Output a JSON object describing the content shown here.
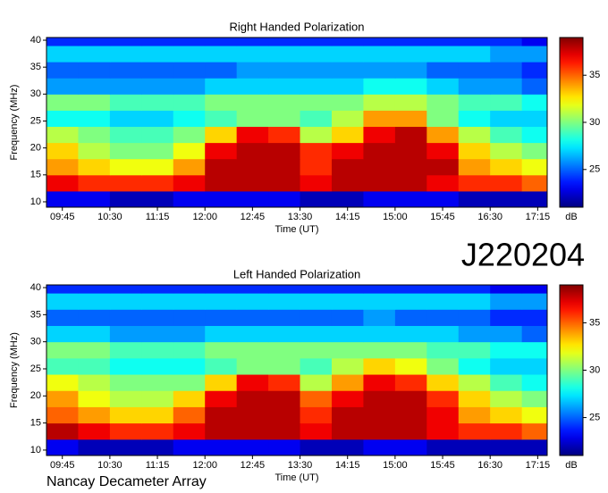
{
  "chart_data": [
    {
      "type": "heatmap",
      "title": "Right Handed Polarization",
      "x_label": "Time (UT)",
      "y_label": "Frequency (MHz)",
      "colorbar_label": "dB",
      "xlim": [
        9.5,
        17.4
      ],
      "ylim": [
        9,
        40.5
      ],
      "clim": [
        21,
        39
      ],
      "xticks": [
        {
          "value": 9.75,
          "label": "09:45"
        },
        {
          "value": 10.5,
          "label": "10:30"
        },
        {
          "value": 11.25,
          "label": "11:15"
        },
        {
          "value": 12,
          "label": "12:00"
        },
        {
          "value": 12.75,
          "label": "12:45"
        },
        {
          "value": 13.5,
          "label": "13:30"
        },
        {
          "value": 14.25,
          "label": "14:15"
        },
        {
          "value": 15,
          "label": "15:00"
        },
        {
          "value": 15.75,
          "label": "15:45"
        },
        {
          "value": 16.5,
          "label": "16:30"
        },
        {
          "value": 17.25,
          "label": "17:15"
        }
      ],
      "yticks": [
        10,
        15,
        20,
        25,
        30,
        35,
        40
      ],
      "cticks": [
        25,
        30,
        35
      ],
      "xbins": [
        9.5,
        10,
        10.5,
        11,
        11.5,
        12,
        12.5,
        13,
        13.5,
        14,
        14.5,
        15,
        15.5,
        16,
        16.5,
        17,
        17.4
      ],
      "ybins": [
        9,
        12,
        15,
        18,
        21,
        24,
        27,
        30,
        33,
        36,
        39,
        40.5
      ],
      "z": [
        [
          23,
          23,
          22,
          22,
          23,
          23,
          23,
          23,
          22,
          22,
          23,
          23,
          23,
          22,
          22,
          22
        ],
        [
          37,
          36,
          36,
          36,
          37,
          38,
          38,
          38,
          37,
          38,
          38,
          38,
          37,
          36,
          36,
          35
        ],
        [
          34,
          33,
          32,
          32,
          34,
          38,
          38,
          38,
          36,
          38,
          38,
          38,
          38,
          34,
          33,
          32
        ],
        [
          33,
          31,
          30,
          30,
          32,
          37,
          38,
          38,
          36,
          37,
          38,
          38,
          37,
          33,
          31,
          30
        ],
        [
          31,
          30,
          29,
          29,
          30,
          33,
          37,
          36,
          31,
          33,
          37,
          38,
          34,
          31,
          29,
          28
        ],
        [
          28,
          28,
          27,
          27,
          28,
          29,
          30,
          30,
          29,
          31,
          34,
          34,
          30,
          28,
          27,
          27
        ],
        [
          30,
          30,
          29,
          29,
          29,
          30,
          30,
          30,
          30,
          30,
          31,
          31,
          30,
          29,
          29,
          28
        ],
        [
          26,
          26,
          26,
          26,
          26,
          27,
          27,
          27,
          27,
          27,
          28,
          28,
          27,
          26,
          26,
          25
        ],
        [
          25,
          25,
          25,
          25,
          25,
          25,
          26,
          26,
          26,
          26,
          26,
          26,
          25,
          25,
          25,
          24
        ],
        [
          27,
          27,
          27,
          27,
          27,
          27,
          27,
          27,
          27,
          27,
          27,
          27,
          27,
          27,
          26,
          26
        ],
        [
          24,
          24,
          24,
          24,
          24,
          24,
          24,
          24,
          24,
          24,
          24,
          24,
          24,
          24,
          24,
          23
        ]
      ]
    },
    {
      "type": "heatmap",
      "title": "Left Handed Polarization",
      "x_label": "Time (UT)",
      "y_label": "Frequency (MHz)",
      "colorbar_label": "dB",
      "xlim": [
        9.5,
        17.4
      ],
      "ylim": [
        9,
        40.5
      ],
      "clim": [
        21,
        39
      ],
      "xticks": [
        {
          "value": 9.75,
          "label": "09:45"
        },
        {
          "value": 10.5,
          "label": "10:30"
        },
        {
          "value": 11.25,
          "label": "11:15"
        },
        {
          "value": 12,
          "label": "12:00"
        },
        {
          "value": 12.75,
          "label": "12:45"
        },
        {
          "value": 13.5,
          "label": "13:30"
        },
        {
          "value": 14.25,
          "label": "14:15"
        },
        {
          "value": 15,
          "label": "15:00"
        },
        {
          "value": 15.75,
          "label": "15:45"
        },
        {
          "value": 16.5,
          "label": "16:30"
        },
        {
          "value": 17.25,
          "label": "17:15"
        }
      ],
      "yticks": [
        10,
        15,
        20,
        25,
        30,
        35,
        40
      ],
      "cticks": [
        25,
        30,
        35
      ],
      "xbins": [
        9.5,
        10,
        10.5,
        11,
        11.5,
        12,
        12.5,
        13,
        13.5,
        14,
        14.5,
        15,
        15.5,
        16,
        16.5,
        17,
        17.4
      ],
      "ybins": [
        9,
        12,
        15,
        18,
        21,
        24,
        27,
        30,
        33,
        36,
        39,
        40.5
      ],
      "z": [
        [
          23,
          22,
          22,
          22,
          23,
          23,
          23,
          23,
          22,
          22,
          23,
          23,
          22,
          22,
          22,
          22
        ],
        [
          38,
          37,
          36,
          36,
          37,
          38,
          38,
          38,
          37,
          38,
          38,
          38,
          37,
          36,
          36,
          35
        ],
        [
          35,
          34,
          33,
          33,
          35,
          38,
          38,
          38,
          36,
          38,
          38,
          38,
          37,
          34,
          33,
          32
        ],
        [
          34,
          32,
          31,
          31,
          33,
          37,
          38,
          38,
          35,
          37,
          38,
          38,
          36,
          33,
          31,
          30
        ],
        [
          32,
          31,
          30,
          30,
          30,
          33,
          37,
          36,
          31,
          34,
          37,
          36,
          33,
          31,
          29,
          28
        ],
        [
          29,
          29,
          28,
          28,
          28,
          29,
          30,
          30,
          29,
          31,
          33,
          32,
          30,
          28,
          27,
          27
        ],
        [
          30,
          30,
          29,
          29,
          29,
          30,
          30,
          30,
          30,
          30,
          30,
          30,
          29,
          29,
          28,
          28
        ],
        [
          27,
          27,
          26,
          26,
          26,
          27,
          27,
          27,
          27,
          27,
          27,
          27,
          27,
          26,
          26,
          25
        ],
        [
          25,
          25,
          25,
          25,
          25,
          25,
          25,
          25,
          25,
          25,
          26,
          25,
          25,
          25,
          24,
          24
        ],
        [
          27,
          27,
          27,
          27,
          27,
          27,
          27,
          27,
          27,
          27,
          27,
          27,
          27,
          27,
          26,
          26
        ],
        [
          24,
          24,
          24,
          24,
          24,
          24,
          24,
          24,
          24,
          24,
          24,
          24,
          24,
          24,
          23,
          23
        ]
      ]
    }
  ],
  "id_label": "J220204",
  "footer": "Nancay Decameter Array"
}
